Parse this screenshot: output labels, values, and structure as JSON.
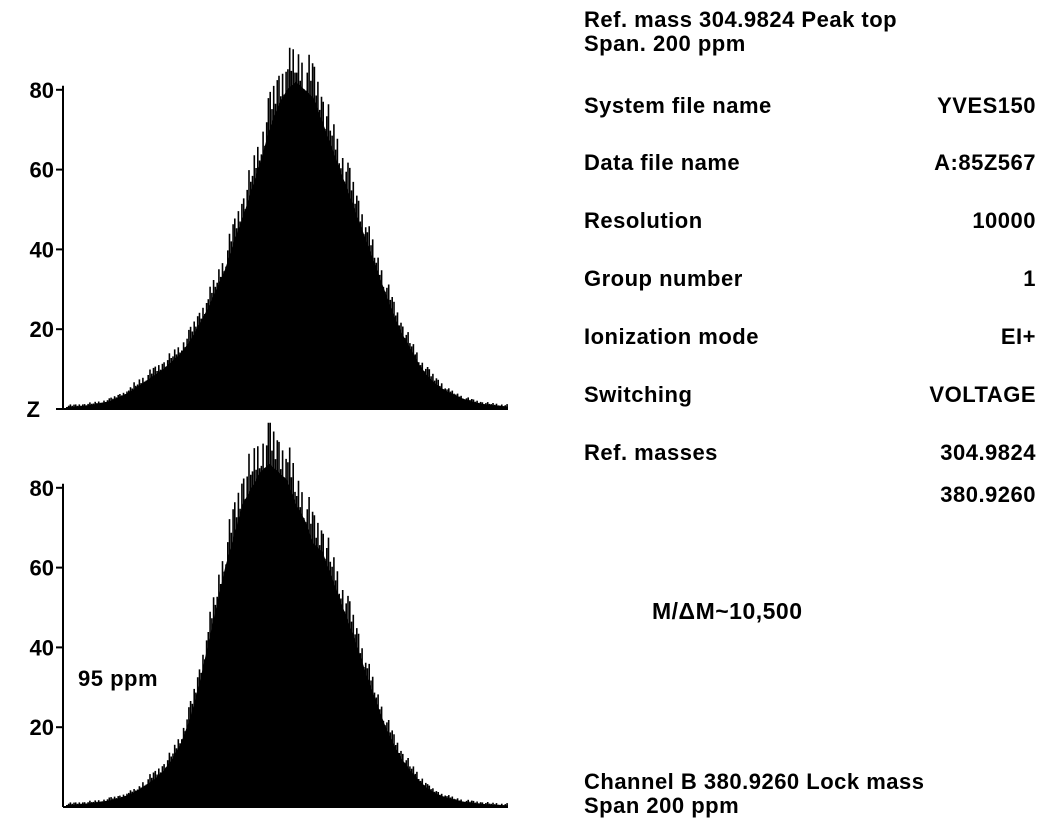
{
  "chart_data": [
    {
      "type": "area",
      "title": "Ref. mass 304.9824 Peak top",
      "subtitle": "Span. 200 ppm",
      "ylim": [
        0,
        100
      ],
      "yticks": [
        80,
        60,
        40,
        20
      ],
      "y_zero_label": "Z",
      "x": [
        0,
        2,
        4,
        6,
        8,
        10,
        12,
        14,
        16,
        18,
        20,
        22,
        24,
        26,
        28,
        30,
        32,
        34,
        36,
        38,
        40,
        42,
        44,
        46,
        48,
        50,
        52,
        54,
        56,
        58,
        60,
        62,
        64,
        66,
        68,
        70,
        72,
        74,
        76,
        78,
        80,
        82,
        84,
        86,
        88,
        90,
        92,
        94,
        96,
        98,
        100
      ],
      "series": [
        {
          "values": [
            0.5,
            0.6,
            0.8,
            1.1,
            1.5,
            2,
            3,
            4,
            5.5,
            7,
            8.5,
            10,
            12,
            14,
            17,
            21,
            25,
            30,
            35,
            42,
            48,
            55,
            62,
            70,
            76,
            80,
            82,
            80,
            78,
            72,
            66,
            60,
            54,
            48,
            42,
            36,
            30,
            24,
            19,
            15,
            11,
            8,
            6,
            4.5,
            3.5,
            2.5,
            1.8,
            1.3,
            1,
            0.8,
            0.6
          ]
        }
      ]
    },
    {
      "type": "area",
      "title": "Channel B 380.9260 Lock mass",
      "subtitle": "Span 200 ppm",
      "ylim": [
        0,
        100
      ],
      "yticks": [
        80,
        60,
        40,
        20
      ],
      "annotation": "95 ppm",
      "x": [
        0,
        2,
        4,
        6,
        8,
        10,
        12,
        14,
        16,
        18,
        20,
        22,
        24,
        26,
        28,
        30,
        32,
        34,
        36,
        38,
        40,
        42,
        44,
        46,
        48,
        50,
        52,
        54,
        56,
        58,
        60,
        62,
        64,
        66,
        68,
        70,
        72,
        74,
        76,
        78,
        80,
        82,
        84,
        86,
        88,
        90,
        92,
        94,
        96,
        98,
        100
      ],
      "series": [
        {
          "values": [
            0.5,
            0.6,
            0.8,
            1,
            1.3,
            1.7,
            2.2,
            3,
            4,
            5.5,
            7,
            9,
            12,
            16,
            22,
            30,
            40,
            50,
            60,
            68,
            76,
            80,
            84,
            86,
            84,
            82,
            76,
            72,
            66,
            64,
            58,
            52,
            46,
            40,
            33,
            27,
            21,
            16,
            12,
            9,
            6.5,
            4.5,
            3.2,
            2.4,
            1.8,
            1.3,
            1,
            0.8,
            0.6,
            0.5,
            0.4
          ]
        }
      ]
    }
  ],
  "info": {
    "system_file_name": {
      "label": "System file name",
      "value": "YVES150"
    },
    "data_file_name": {
      "label": "Data file name",
      "value": "A:85Z567"
    },
    "resolution": {
      "label": "Resolution",
      "value": "10000"
    },
    "group_number": {
      "label": "Group number",
      "value": "1"
    },
    "ionization_mode": {
      "label": "Ionization mode",
      "value": "EI+"
    },
    "switching": {
      "label": "Switching",
      "value": "VOLTAGE"
    },
    "ref_masses": {
      "label": "Ref. masses",
      "value": "304.9824",
      "value2": "380.9260"
    }
  },
  "resolving_power": "M/ΔM~10,500"
}
